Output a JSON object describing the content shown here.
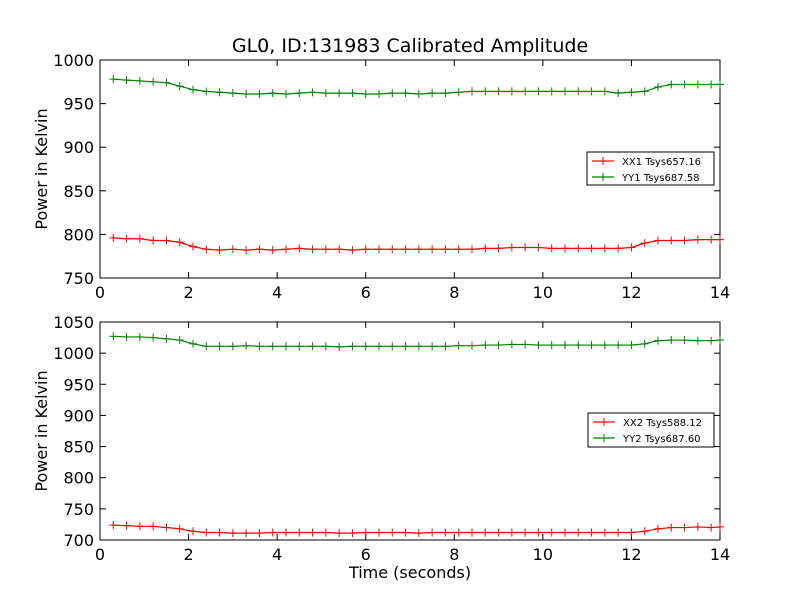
{
  "chart_data": [
    {
      "type": "line",
      "title": "GL0, ID:131983 Calibrated Amplitude",
      "xlabel": "",
      "ylabel": "Power in Kelvin",
      "xlim": [
        0,
        14
      ],
      "ylim": [
        750,
        1000
      ],
      "xticks": [
        0,
        2,
        4,
        6,
        8,
        10,
        12,
        14
      ],
      "yticks": [
        750,
        800,
        850,
        900,
        950,
        1000
      ],
      "grid": false,
      "legend_position": "center-right",
      "x": [
        0.3,
        0.6,
        0.9,
        1.2,
        1.5,
        1.8,
        2.1,
        2.4,
        2.7,
        3.0,
        3.3,
        3.6,
        3.9,
        4.2,
        4.5,
        4.8,
        5.1,
        5.4,
        5.7,
        6.0,
        6.3,
        6.6,
        6.9,
        7.2,
        7.5,
        7.8,
        8.1,
        8.4,
        8.7,
        9.0,
        9.3,
        9.6,
        9.9,
        10.2,
        10.5,
        10.8,
        11.1,
        11.4,
        11.7,
        12.0,
        12.3,
        12.6,
        12.9,
        13.2,
        13.5,
        13.8,
        14.0
      ],
      "series": [
        {
          "name": "XX1 Tsys657.16",
          "color": "#ff0000",
          "values": [
            796,
            795,
            795,
            793,
            793,
            791,
            786,
            783,
            782,
            783,
            782,
            783,
            782,
            783,
            784,
            783,
            783,
            783,
            782,
            783,
            783,
            783,
            783,
            783,
            783,
            783,
            783,
            783,
            784,
            784,
            785,
            785,
            785,
            784,
            784,
            784,
            784,
            784,
            784,
            785,
            790,
            793,
            793,
            793,
            794,
            794,
            794
          ]
        },
        {
          "name": "YY1 Tsys687.58",
          "color": "#008000",
          "values": [
            978,
            977,
            976,
            975,
            974,
            970,
            966,
            964,
            963,
            962,
            961,
            961,
            962,
            961,
            962,
            963,
            962,
            962,
            962,
            961,
            961,
            962,
            962,
            961,
            962,
            962,
            963,
            964,
            964,
            964,
            964,
            964,
            964,
            964,
            964,
            964,
            964,
            964,
            962,
            963,
            964,
            969,
            972,
            972,
            972,
            972,
            972
          ]
        }
      ]
    },
    {
      "type": "line",
      "title": "",
      "xlabel": "Time (seconds)",
      "ylabel": "Power in Kelvin",
      "xlim": [
        0,
        14
      ],
      "ylim": [
        700,
        1050
      ],
      "xticks": [
        0,
        2,
        4,
        6,
        8,
        10,
        12,
        14
      ],
      "yticks": [
        700,
        750,
        800,
        850,
        900,
        950,
        1000,
        1050
      ],
      "grid": false,
      "legend_position": "center-right",
      "x": [
        0.3,
        0.6,
        0.9,
        1.2,
        1.5,
        1.8,
        2.1,
        2.4,
        2.7,
        3.0,
        3.3,
        3.6,
        3.9,
        4.2,
        4.5,
        4.8,
        5.1,
        5.4,
        5.7,
        6.0,
        6.3,
        6.6,
        6.9,
        7.2,
        7.5,
        7.8,
        8.1,
        8.4,
        8.7,
        9.0,
        9.3,
        9.6,
        9.9,
        10.2,
        10.5,
        10.8,
        11.1,
        11.4,
        11.7,
        12.0,
        12.3,
        12.6,
        12.9,
        13.2,
        13.5,
        13.8,
        14.0
      ],
      "series": [
        {
          "name": "XX2 Tsys588.12",
          "color": "#ff0000",
          "values": [
            724,
            723,
            722,
            722,
            720,
            718,
            714,
            712,
            712,
            711,
            711,
            711,
            712,
            712,
            712,
            712,
            712,
            711,
            711,
            712,
            712,
            712,
            712,
            711,
            712,
            712,
            712,
            712,
            712,
            712,
            712,
            712,
            712,
            712,
            712,
            712,
            712,
            712,
            712,
            712,
            714,
            718,
            720,
            720,
            721,
            720,
            721
          ]
        },
        {
          "name": "YY2 Tsys687.60",
          "color": "#008000",
          "values": [
            1027,
            1026,
            1026,
            1025,
            1023,
            1021,
            1015,
            1011,
            1011,
            1011,
            1012,
            1011,
            1011,
            1011,
            1011,
            1011,
            1011,
            1010,
            1011,
            1011,
            1011,
            1011,
            1011,
            1011,
            1011,
            1011,
            1012,
            1012,
            1013,
            1013,
            1014,
            1014,
            1013,
            1013,
            1013,
            1013,
            1013,
            1013,
            1013,
            1013,
            1015,
            1020,
            1021,
            1021,
            1020,
            1020,
            1021
          ]
        }
      ]
    }
  ]
}
